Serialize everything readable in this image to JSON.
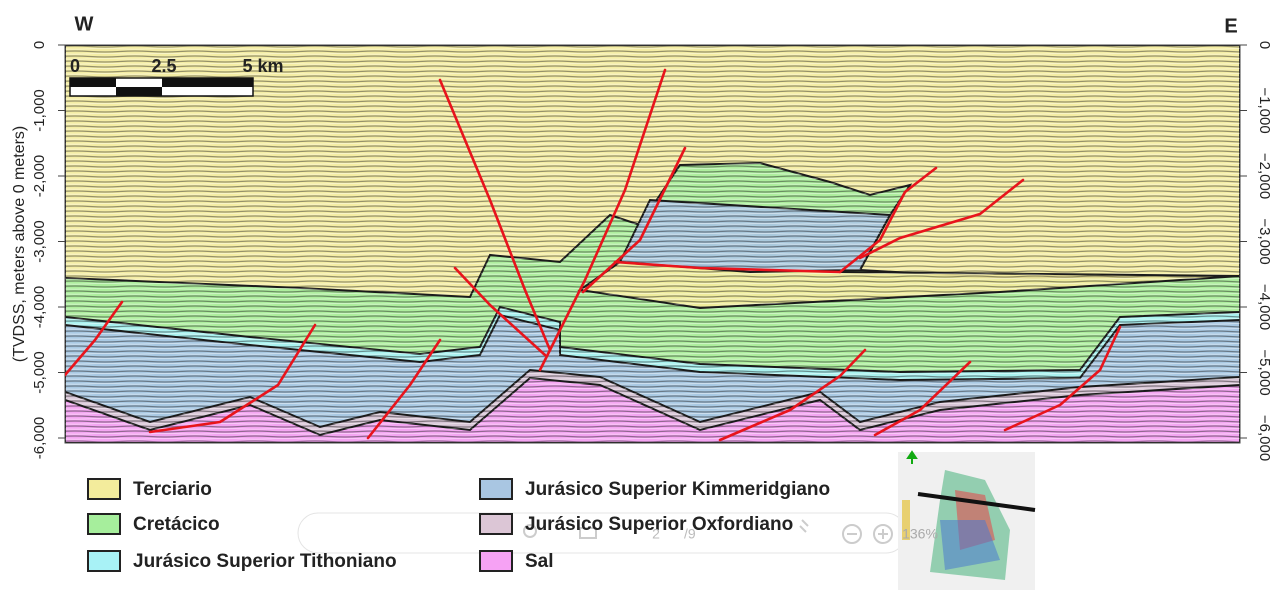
{
  "section": {
    "west": "W",
    "east": "E",
    "axis_label": "(TVDSS, meters above 0 meters)",
    "left_ticks": [
      "0",
      "-1,000",
      "-2,000",
      "-3,000",
      "-4,000",
      "-5,000",
      "-6,000"
    ],
    "right_ticks": [
      "0",
      "−1,000",
      "−2,000",
      "−3,000",
      "−4,000",
      "−5,000",
      "−6,000"
    ],
    "scale_bar": [
      "0",
      "2.5",
      "5 km"
    ]
  },
  "legend": [
    {
      "label": "Terciario",
      "color": "#f3ec9c"
    },
    {
      "label": "Cretácico",
      "color": "#a6ee9c"
    },
    {
      "label": "Jurásico Superior Tithoniano",
      "color": "#a8f2f6"
    },
    {
      "label": "Jurásico Superior Kimmeridgiano",
      "color": "#a9c6e2"
    },
    {
      "label": "Jurásico Superior Oxfordiano",
      "color": "#dcc6d6"
    },
    {
      "label": "Sal",
      "color": "#f6a2f4"
    }
  ],
  "viewer": {
    "page": "2",
    "pages": "/9",
    "zoom": "136%"
  }
}
